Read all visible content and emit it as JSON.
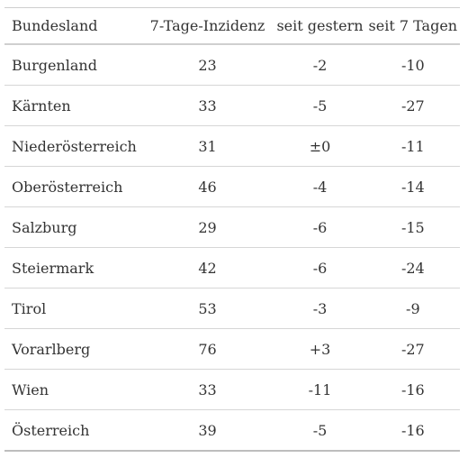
{
  "table": {
    "headers": [
      "Bundesland",
      "7-Tage-Inzidenz",
      "seit gestern",
      "seit 7 Tagen"
    ],
    "rows": [
      [
        "Burgenland",
        "23",
        "-2",
        "-10"
      ],
      [
        "Kärnten",
        "33",
        "-5",
        "-27"
      ],
      [
        "Niederösterreich",
        "31",
        "±0",
        "-11"
      ],
      [
        "Oberösterreich",
        "46",
        "-4",
        "-14"
      ],
      [
        "Salzburg",
        "29",
        "-6",
        "-15"
      ],
      [
        "Steiermark",
        "42",
        "-6",
        "-24"
      ],
      [
        "Tirol",
        "53",
        "-3",
        "-9"
      ],
      [
        "Vorarlberg",
        "76",
        "+3",
        "-27"
      ],
      [
        "Wien",
        "33",
        "-11",
        "-16"
      ],
      [
        "Österreich",
        "39",
        "-5",
        "-16"
      ]
    ]
  }
}
